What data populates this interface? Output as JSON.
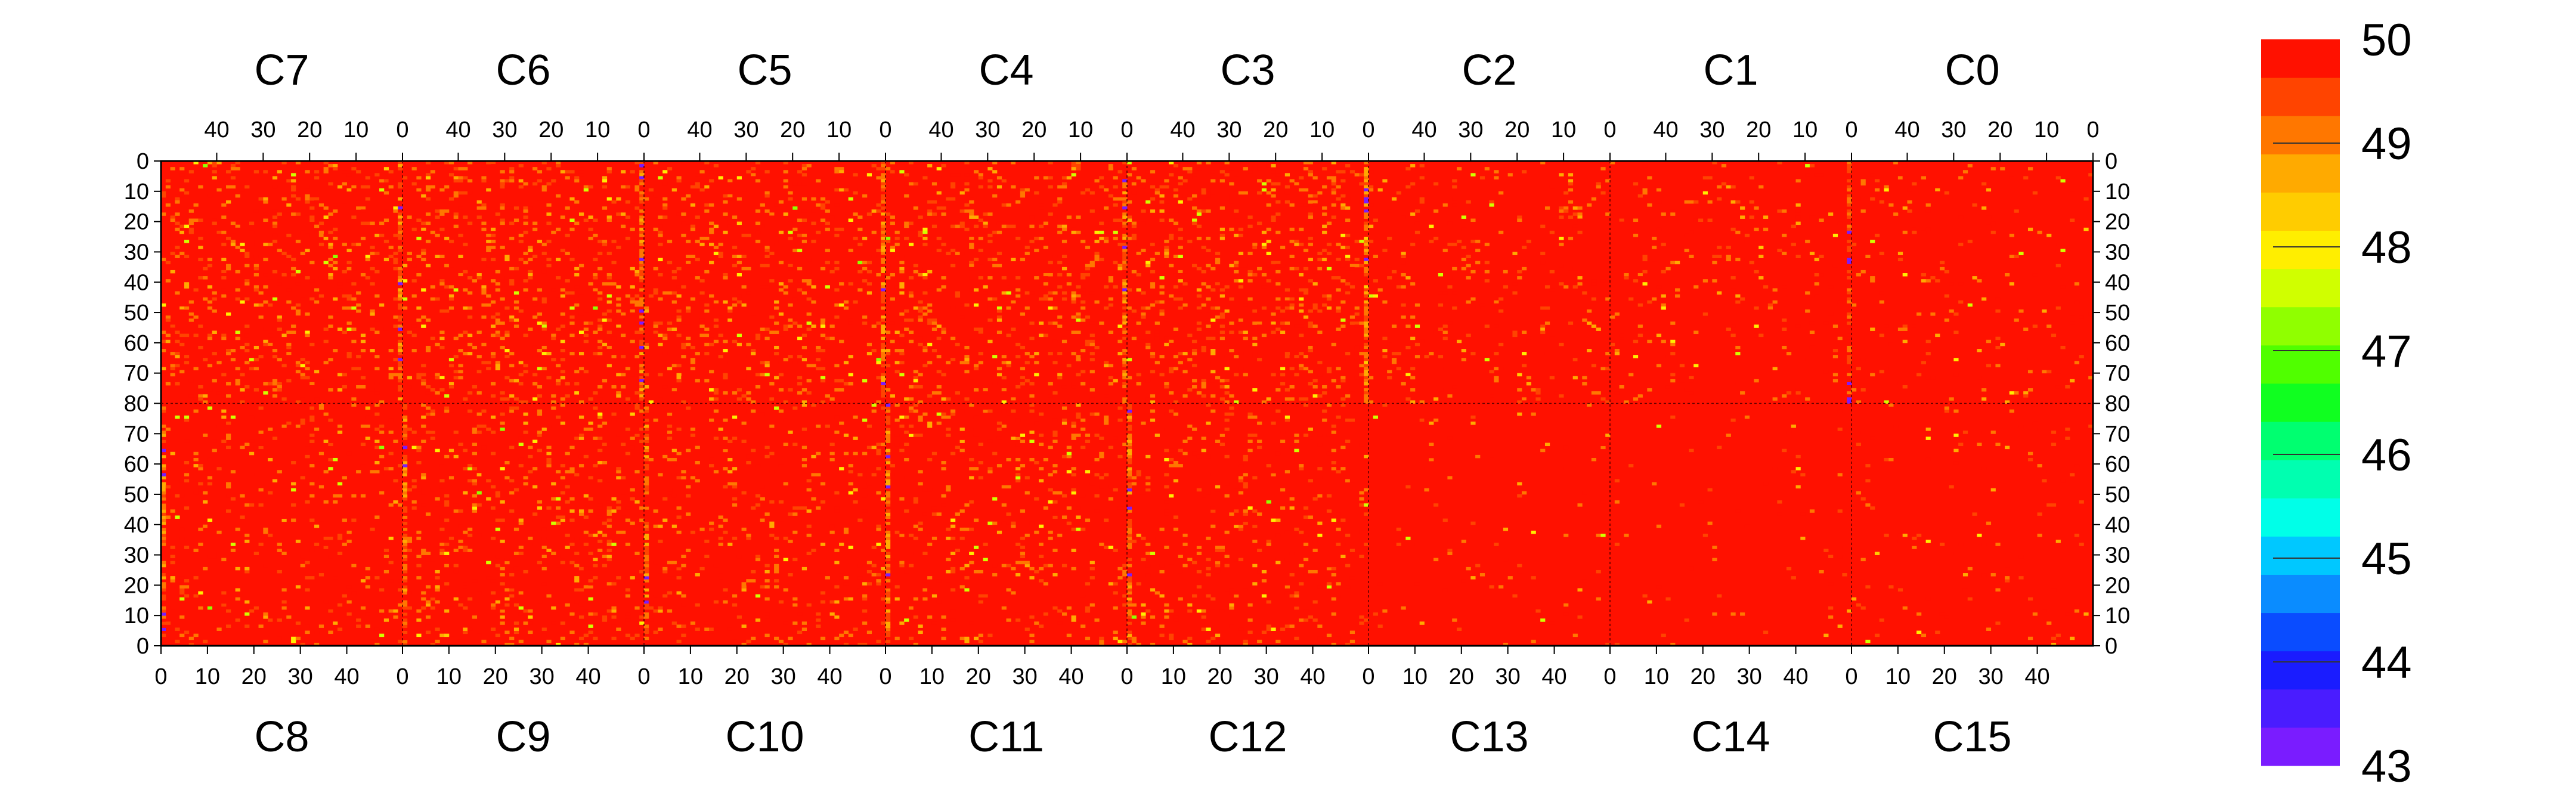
{
  "chart_data": {
    "type": "heatmap",
    "title": "",
    "grid": false,
    "top_panel": {
      "chip_labels": [
        "C7",
        "C6",
        "C5",
        "C4",
        "C3",
        "C2",
        "C1",
        "C0"
      ],
      "x_ticks": [
        40,
        30,
        20,
        10,
        0
      ],
      "x_direction": "reversed",
      "y_ticks": [
        0,
        10,
        20,
        30,
        40,
        50,
        60,
        70,
        80
      ],
      "y_direction": "downward"
    },
    "bottom_panel": {
      "chip_labels": [
        "C8",
        "C9",
        "C10",
        "C11",
        "C12",
        "C13",
        "C14",
        "C15"
      ],
      "x_ticks": [
        0,
        10,
        20,
        30,
        40
      ],
      "x_direction": "normal",
      "y_ticks": [
        70,
        60,
        50,
        40,
        30,
        20,
        10,
        0
      ],
      "y_direction": "upward"
    },
    "chip_columns": 52,
    "rows_per_panel": 80,
    "color_scale": {
      "min": 43,
      "max": 50,
      "ticks": [
        "50",
        "49",
        "48",
        "47",
        "46",
        "45",
        "44",
        "43"
      ],
      "legend_position": "right",
      "palette": [
        "#7a1cff",
        "#4a1cff",
        "#1a1cff",
        "#0a4cff",
        "#0a8cff",
        "#00c8ff",
        "#00ffe8",
        "#00ffb0",
        "#00ff70",
        "#10ff20",
        "#50ff00",
        "#90ff00",
        "#d0ff00",
        "#ffee00",
        "#ffcc00",
        "#ffaa00",
        "#ff7700",
        "#ff4400",
        "#ff1100"
      ]
    },
    "background_value": 50,
    "chip_noise_level": [
      0.28,
      0.3,
      0.26,
      0.28,
      0.3,
      0.14,
      0.1,
      0.09,
      0.16,
      0.22,
      0.18,
      0.18,
      0.16,
      0.04,
      0.03,
      0.05
    ],
    "hot_columns": [
      {
        "chip": "C7",
        "column": 0,
        "range": [
          0,
          48.3
        ],
        "typical": 49.3
      },
      {
        "chip": "C6",
        "column": 0,
        "range": [
          0,
          48.3
        ],
        "typical": 49.3
      },
      {
        "chip": "C5",
        "column": 0,
        "range": [
          0,
          48.0
        ],
        "typical": 49.2
      },
      {
        "chip": "C4",
        "column": 0,
        "range": [
          0,
          48.5
        ],
        "typical": 49.3
      },
      {
        "chip": "C3",
        "column": 0,
        "range": [
          0,
          48.0
        ],
        "typical": 49.1
      },
      {
        "chip": "C1",
        "column": 0,
        "range": [
          0,
          48.8
        ],
        "typical": 49.6
      },
      {
        "chip": "C8",
        "column": 0,
        "range": [
          0,
          48.3
        ],
        "typical": 49.3
      },
      {
        "chip": "C9",
        "column": 0,
        "range": [
          0,
          48.3
        ],
        "typical": 49.3
      },
      {
        "chip": "C10",
        "column": 0,
        "range": [
          0,
          48.3
        ],
        "typical": 49.3
      },
      {
        "chip": "C11",
        "column": 0,
        "range": [
          0,
          48.0
        ],
        "typical": 49.2
      },
      {
        "chip": "C12",
        "column": 0,
        "range": [
          0,
          48.0
        ],
        "typical": 49.2
      }
    ]
  }
}
